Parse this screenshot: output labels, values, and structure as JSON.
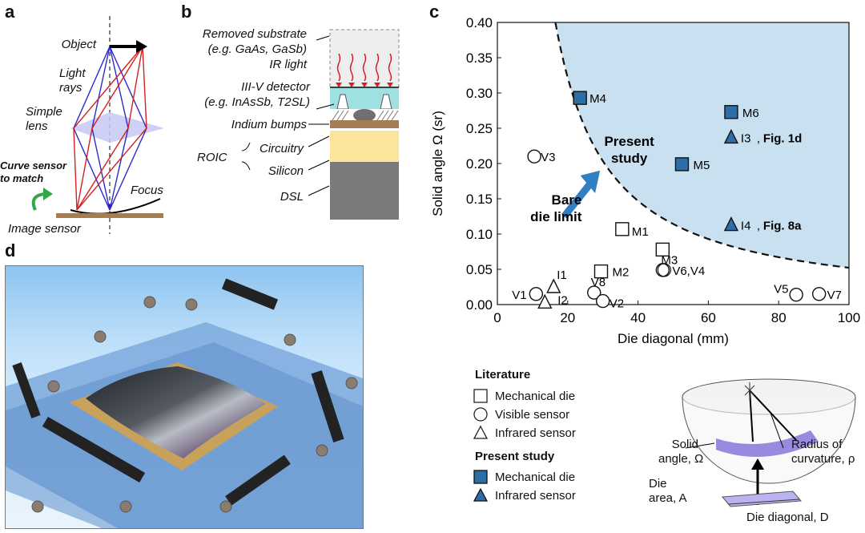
{
  "panels": {
    "a": {
      "label": "a",
      "labels": {
        "object": "Object",
        "light_rays": "Light\nrays",
        "simple_lens": "Simple\nlens",
        "curve_sensor": "Curve sensor\nto match",
        "focus": "Focus",
        "image_sensor": "Image sensor"
      }
    },
    "b": {
      "label": "b",
      "labels": {
        "removed_substrate": "Removed substrate",
        "removed_substrate_eg": "(e.g. GaAs, GaSb)",
        "ir_light": "IR light",
        "detector": "III-V detector",
        "detector_eg": "(e.g. InAsSb, T2SL)",
        "indium": "Indium bumps",
        "roic": "ROIC",
        "circuitry": "Circuitry",
        "silicon": "Silicon",
        "dsl": "DSL"
      }
    },
    "c": {
      "label": "c"
    },
    "d": {
      "label": "d"
    }
  },
  "chart_data": {
    "type": "scatter",
    "xlabel": "Die diagonal (mm)",
    "ylabel": "Solid angle Ω (sr)",
    "xlim": [
      0,
      100
    ],
    "ylim": [
      0,
      0.4
    ],
    "xticks": [
      "0",
      "20",
      "40",
      "60",
      "80",
      "100"
    ],
    "yticks": [
      "0.00",
      "0.05",
      "0.10",
      "0.15",
      "0.20",
      "0.25",
      "0.30",
      "0.35",
      "0.40"
    ],
    "bare_die_limit_label": "Bare\ndie limit",
    "present_study_label": "Present\nstudy",
    "points": [
      {
        "label": "M4",
        "x": 23.5,
        "y": 0.293,
        "kind": "mechanical",
        "study": "present"
      },
      {
        "label": "M6",
        "x": 66.5,
        "y": 0.273,
        "kind": "mechanical",
        "study": "present"
      },
      {
        "label": "M5",
        "x": 52.5,
        "y": 0.199,
        "kind": "mechanical",
        "study": "present"
      },
      {
        "label": "I3",
        "x": 66.5,
        "y": 0.237,
        "kind": "infrared",
        "study": "present",
        "ref": "Fig. 1d"
      },
      {
        "label": "I4",
        "x": 66.5,
        "y": 0.113,
        "kind": "infrared",
        "study": "present",
        "ref": "Fig. 8a"
      },
      {
        "label": "M1",
        "x": 35.5,
        "y": 0.107,
        "kind": "mechanical",
        "study": "literature"
      },
      {
        "label": "M3",
        "x": 47.0,
        "y": 0.078,
        "kind": "mechanical",
        "study": "literature"
      },
      {
        "label": "M2",
        "x": 29.5,
        "y": 0.047,
        "kind": "mechanical",
        "study": "literature"
      },
      {
        "label": "V3",
        "x": 10.5,
        "y": 0.21,
        "kind": "visible",
        "study": "literature"
      },
      {
        "label": "V6,V4",
        "x": 47.0,
        "y": 0.049,
        "kind": "visible",
        "study": "literature"
      },
      {
        "label": "V1",
        "x": 11.0,
        "y": 0.015,
        "kind": "visible",
        "study": "literature"
      },
      {
        "label": "V8",
        "x": 27.5,
        "y": 0.017,
        "kind": "visible",
        "study": "literature"
      },
      {
        "label": "V2",
        "x": 30.0,
        "y": 0.005,
        "kind": "visible",
        "study": "literature"
      },
      {
        "label": "V5",
        "x": 85.0,
        "y": 0.014,
        "kind": "visible",
        "study": "literature"
      },
      {
        "label": "V7",
        "x": 91.5,
        "y": 0.015,
        "kind": "visible",
        "study": "literature"
      },
      {
        "label": "I1",
        "x": 16.0,
        "y": 0.025,
        "kind": "infrared",
        "study": "literature"
      },
      {
        "label": "I2",
        "x": 13.5,
        "y": 0.003,
        "kind": "infrared",
        "study": "literature"
      }
    ],
    "legend": {
      "literature_title": "Literature",
      "literature": [
        "Mechanical die",
        "Visible sensor",
        "Infrared sensor"
      ],
      "present_title": "Present study",
      "present": [
        "Mechanical die",
        "Infrared sensor"
      ]
    },
    "colors": {
      "fill_region": "#c9e0f0",
      "present_marker": "#2e6ea6",
      "arrow": "#2f7fc1"
    }
  },
  "inset": {
    "solid_angle": "Solid\nangle, Ω",
    "radius": "Radius of\ncurvature, ρ",
    "die_area": "Die\narea, A",
    "die_diagonal": "Die diagonal, D"
  }
}
